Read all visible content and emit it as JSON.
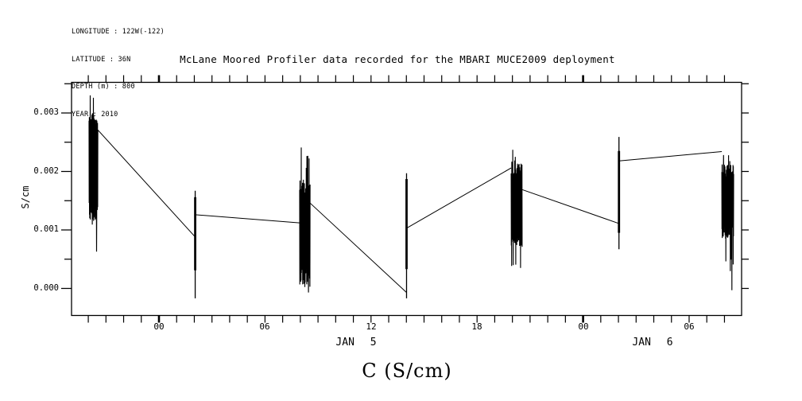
{
  "colors": {
    "ink": "#000000",
    "background": "#ffffff"
  },
  "metadata": {
    "lines": [
      "LONGITUDE : 122W(-122)",
      "LATITUDE : 36N",
      "DEPTH (m) : 800",
      "YEAR : 2010"
    ]
  },
  "chart_data": {
    "type": "line",
    "title": "McLane Moored Profiler data recorded for the MBARI MUCE2009 deployment",
    "xlabel": "C (S/cm)",
    "ylabel": "S/cm",
    "grid": false,
    "legend": "none",
    "x_axis": {
      "units": "hours from JAN 5 00:00",
      "range_hours": [
        -4.95,
        32.97
      ],
      "tick_labels": [
        "00",
        "06",
        "12",
        "18",
        "00",
        "06"
      ],
      "tick_positions_hours": [
        0,
        6,
        12,
        18,
        24,
        30
      ],
      "minor_tick_interval_hours": 1,
      "date_labels": [
        "JAN 5",
        "JAN 6"
      ]
    },
    "y_axis": {
      "units": "S/cm",
      "range": [
        -0.00047,
        0.00353
      ],
      "tick_labels": [
        "0.000",
        "0.001",
        "0.002",
        "0.003"
      ],
      "tick_values": [
        0.0,
        0.001,
        0.002,
        0.003
      ],
      "minor_tick_interval": 0.0005
    },
    "profiles": [
      {
        "id": 1,
        "style": "dense",
        "t_start": -3.96,
        "t_end": -3.46,
        "dense_min": 0.00108,
        "dense_max": 0.003,
        "spike_min": 0.00063,
        "spike_max": 0.0033
      },
      {
        "id": 2,
        "style": "thin",
        "t_center": 2.05,
        "dense_min": 0.00031,
        "dense_max": 0.00156,
        "spike_min": -0.00017,
        "spike_max": 0.00167
      },
      {
        "id": 3,
        "style": "dense",
        "t_start": 7.96,
        "t_end": 8.55,
        "dense_min": 6e-05,
        "dense_max": 0.00187,
        "spike_min": -7e-05,
        "spike_max": 0.00241
      },
      {
        "id": 4,
        "style": "thin",
        "t_center": 14.01,
        "dense_min": 0.00033,
        "dense_max": 0.00187,
        "spike_min": -0.00017,
        "spike_max": 0.00197
      },
      {
        "id": 5,
        "style": "dense",
        "t_start": 19.93,
        "t_end": 20.55,
        "dense_min": 0.00069,
        "dense_max": 0.00214,
        "spike_min": 0.00035,
        "spike_max": 0.00237
      },
      {
        "id": 6,
        "style": "thin",
        "t_center": 26.03,
        "dense_min": 0.00095,
        "dense_max": 0.00235,
        "spike_min": 0.00067,
        "spike_max": 0.00259
      },
      {
        "id": 7,
        "style": "dense",
        "t_start": 31.85,
        "t_end": 32.52,
        "dense_min": 0.00085,
        "dense_max": 0.00212,
        "spike_min": -3e-05,
        "spike_max": 0.00228
      }
    ],
    "drift_segments": [
      {
        "t1": -3.46,
        "v1": 0.00271,
        "t2": 2.05,
        "v2": 0.00088
      },
      {
        "t1": 2.05,
        "v1": 0.00126,
        "t2": 7.96,
        "v2": 0.00112
      },
      {
        "t1": 8.55,
        "v1": 0.00146,
        "t2": 14.01,
        "v2": -7e-05
      },
      {
        "t1": 14.01,
        "v1": 0.00103,
        "t2": 19.93,
        "v2": 0.00206
      },
      {
        "t1": 20.55,
        "v1": 0.00169,
        "t2": 26.03,
        "v2": 0.00111
      },
      {
        "t1": 26.03,
        "v1": 0.00218,
        "t2": 31.85,
        "v2": 0.00234
      }
    ]
  }
}
